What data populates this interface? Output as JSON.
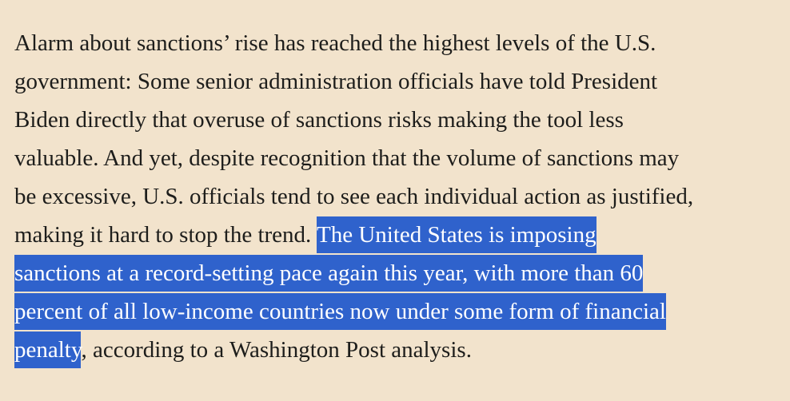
{
  "paragraph": {
    "lines": [
      "Alarm about sanctions’ rise has reached the highest levels of the U.S.",
      "government: Some senior administration officials have told President",
      "Biden directly that overuse of sanctions risks making the tool less",
      "valuable. And yet, despite recognition that the volume of sanctions may",
      "be excessive, U.S. officials tend to see each individual action as justified,"
    ],
    "line6_plain": "making it hard to stop the trend. ",
    "line6_selected": "The United States is imposing",
    "line7_selected": "sanctions at a record-setting pace again this year, with more than 60",
    "line8_selected": "percent of all low-income countries now under some form of financial",
    "line9_selected": "penalty",
    "line9_plain": ", according to a Washington Post analysis."
  },
  "colors": {
    "background": "#f2e3cc",
    "text": "#1d1d1b",
    "selection_background": "#2f62cc",
    "selection_text": "#ffffff"
  }
}
